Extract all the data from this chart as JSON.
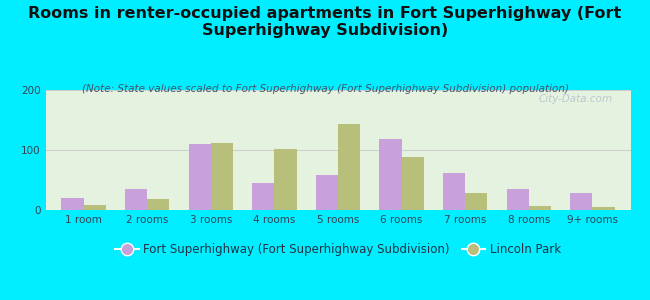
{
  "title": "Rooms in renter-occupied apartments in Fort Superhighway (Fort\nSuperhighway Subdivision)",
  "subtitle": "(Note: State values scaled to Fort Superhighway (Fort Superhighway Subdivision) population)",
  "categories": [
    "1 room",
    "2 rooms",
    "3 rooms",
    "4 rooms",
    "5 rooms",
    "6 rooms",
    "7 rooms",
    "8 rooms",
    "9+ rooms"
  ],
  "fort_values": [
    20,
    35,
    110,
    45,
    58,
    118,
    62,
    35,
    28
  ],
  "lincoln_values": [
    8,
    18,
    112,
    102,
    143,
    88,
    28,
    7,
    5
  ],
  "fort_color": "#c8a0dc",
  "lincoln_color": "#b8bf7a",
  "fort_label": "Fort Superhighway (Fort Superhighway Subdivision)",
  "lincoln_label": "Lincoln Park",
  "bg_outer": "#00eeff",
  "bg_plot": "#e6f2e0",
  "ylim": [
    0,
    200
  ],
  "yticks": [
    0,
    100,
    200
  ],
  "watermark": "City-Data.com",
  "title_fontsize": 11.5,
  "subtitle_fontsize": 7.5,
  "tick_fontsize": 7.5,
  "legend_fontsize": 8.5,
  "bar_width": 0.35
}
